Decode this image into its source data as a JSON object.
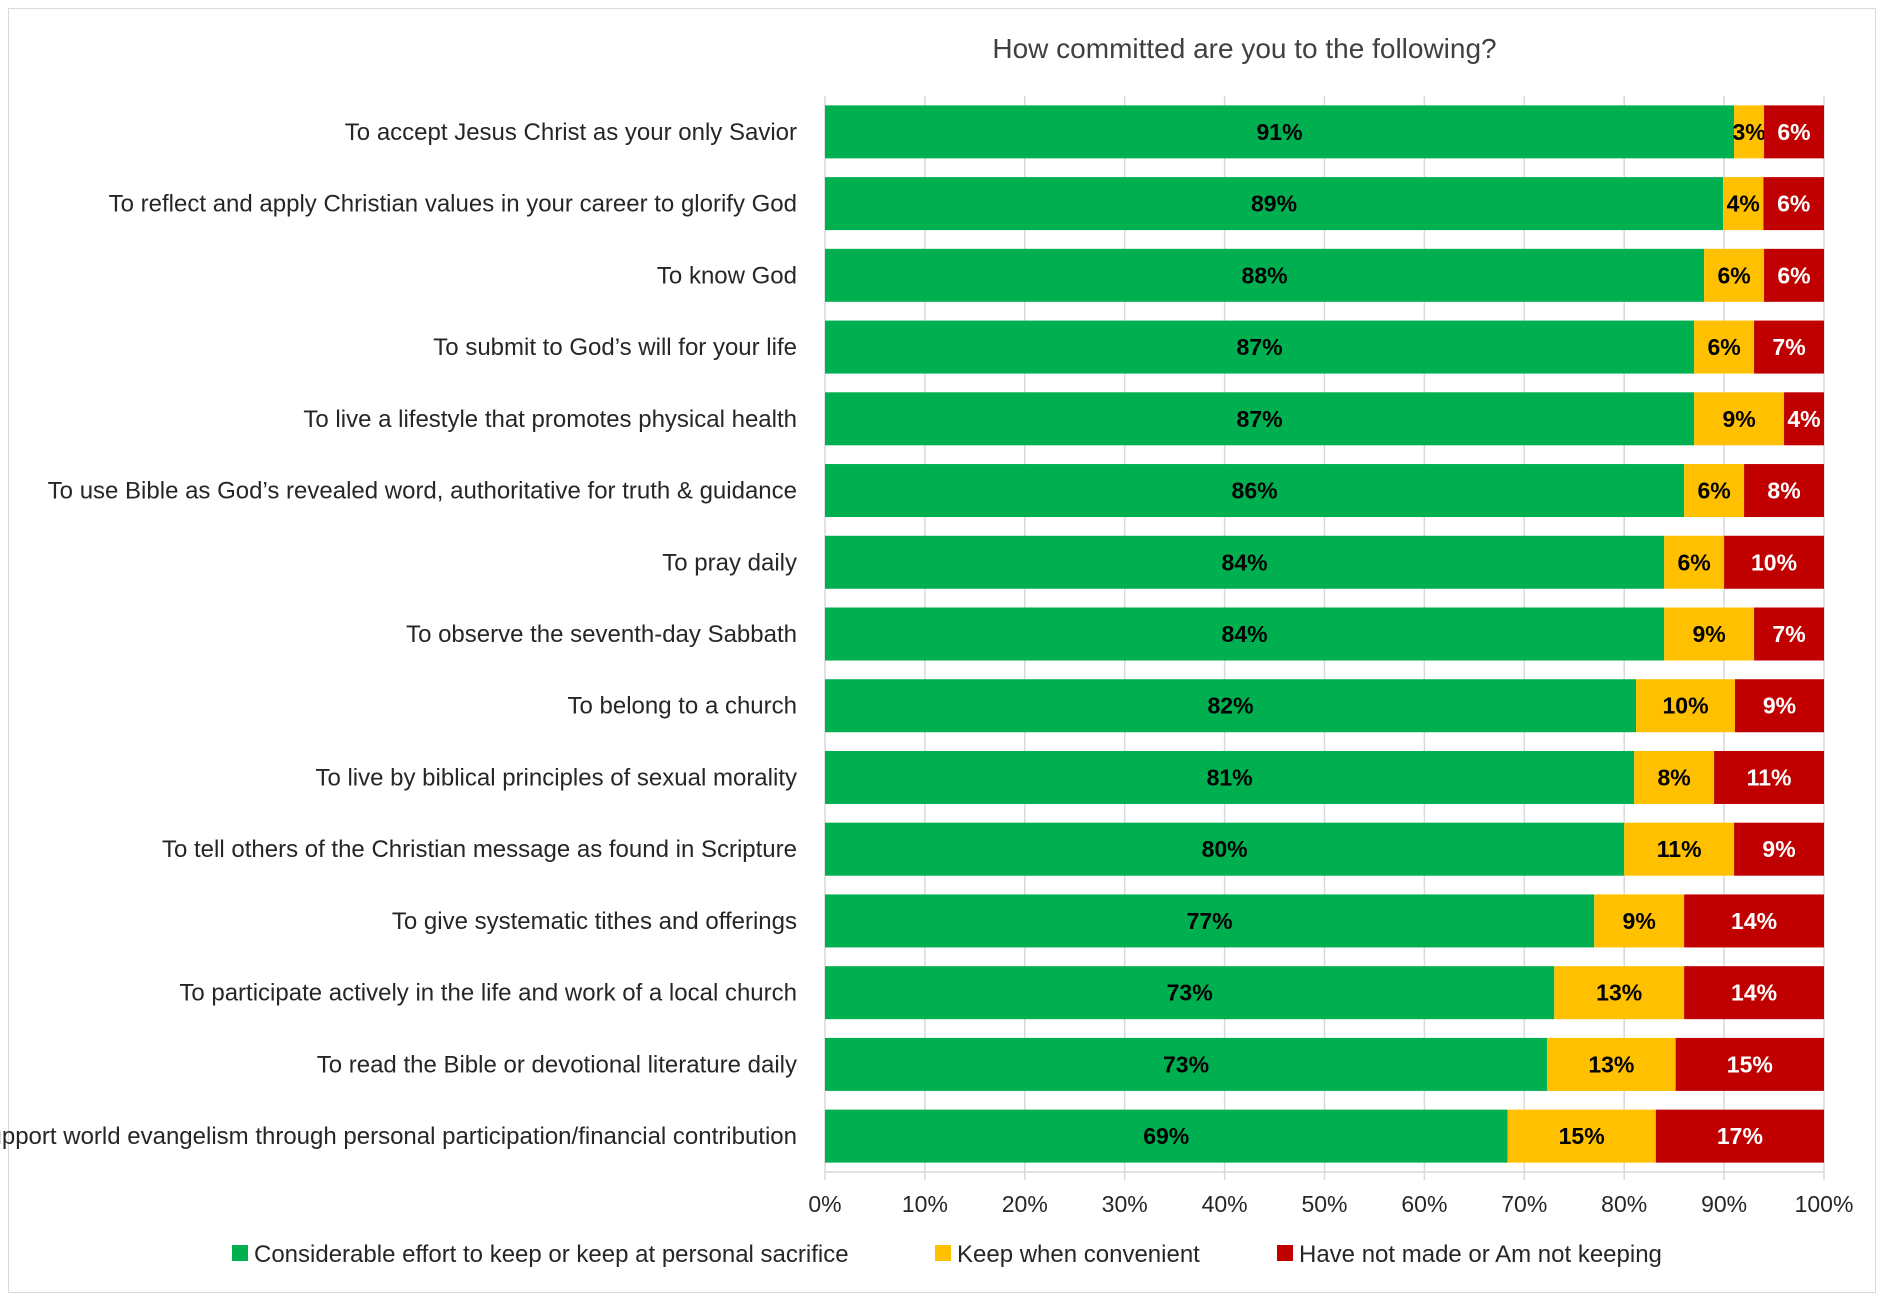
{
  "chart_data": {
    "type": "bar",
    "orientation": "horizontal",
    "stacked": true,
    "title": "How committed are you to the following?",
    "categories": [
      "To accept Jesus Christ as your only Savior",
      "To reflect and apply Christian values in your career to glorify God",
      "To know God",
      "To submit to God’s will for your life",
      "To live a lifestyle that promotes physical health",
      "To use Bible as God’s revealed word, authoritative for truth & guidance",
      "To pray daily",
      "To observe the seventh-day Sabbath",
      "To belong to a church",
      "To live by biblical principles of sexual morality",
      "To tell others of the Christian message as found in Scripture",
      "To give systematic tithes and offerings",
      "To participate actively in the life and work of a local church",
      "To read the Bible or devotional literature daily",
      "To support world evangelism through personal participation/financial contribution"
    ],
    "series": [
      {
        "name": "Considerable effort to keep or keep at personal sacrifice",
        "color": "#00b050",
        "label_color": "#000000",
        "values": [
          91,
          89,
          88,
          87,
          87,
          86,
          84,
          84,
          82,
          81,
          80,
          77,
          73,
          73,
          69
        ]
      },
      {
        "name": "Keep when convenient",
        "color": "#ffc000",
        "label_color": "#000000",
        "values": [
          3,
          4,
          6,
          6,
          9,
          6,
          6,
          9,
          10,
          8,
          11,
          9,
          13,
          13,
          15
        ]
      },
      {
        "name": "Have not made or Am not keeping",
        "color": "#c00000",
        "label_color": "#ffffff",
        "values": [
          6,
          6,
          6,
          7,
          4,
          8,
          10,
          7,
          9,
          11,
          9,
          14,
          14,
          15,
          17
        ]
      }
    ],
    "xlim": [
      0,
      100
    ],
    "xticks": [
      "0%",
      "10%",
      "20%",
      "30%",
      "40%",
      "50%",
      "60%",
      "70%",
      "80%",
      "90%",
      "100%"
    ],
    "grid": true,
    "legend": "bottom"
  }
}
